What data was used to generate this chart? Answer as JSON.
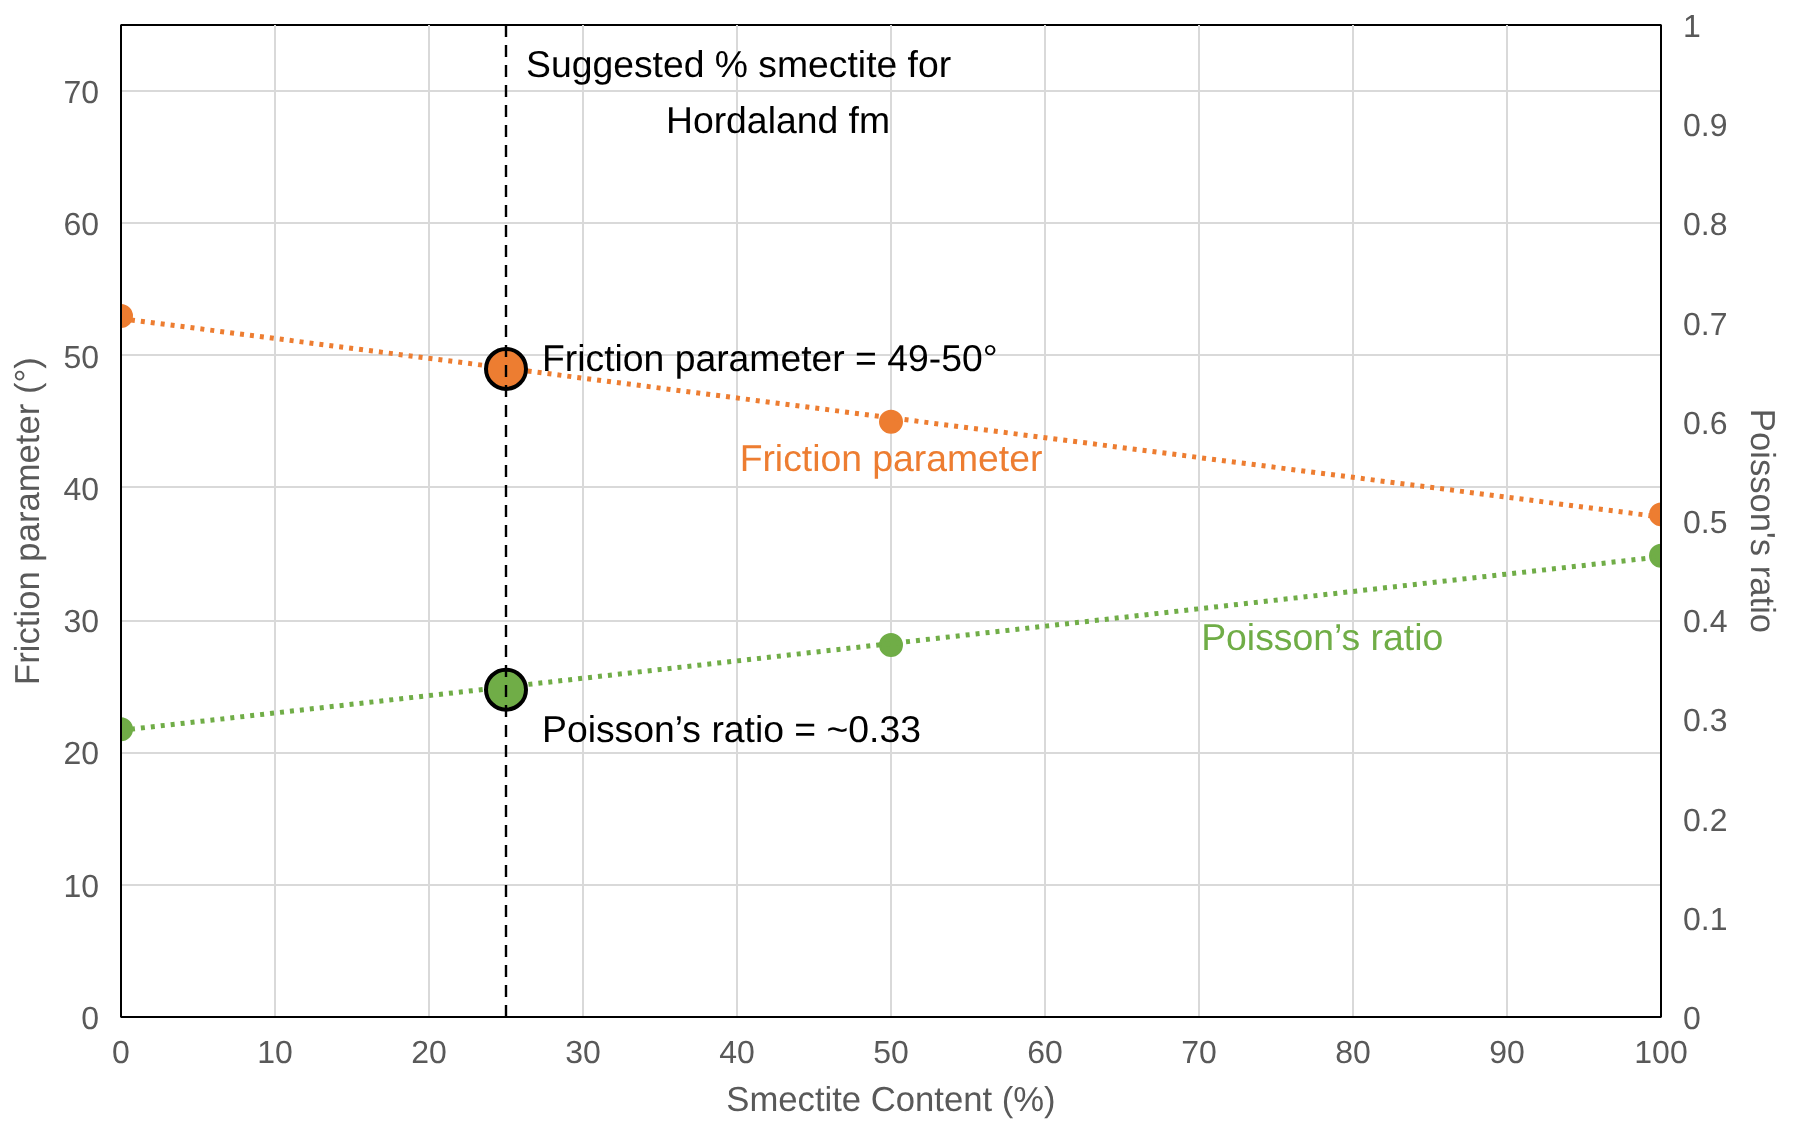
{
  "chart_data": {
    "type": "scatter",
    "xlabel": "Smectite Content (%)",
    "ylabel": "Friction parameter (°)",
    "y2label": "Poisson's ratio",
    "xlim": [
      0,
      100
    ],
    "xticks": [
      0,
      10,
      20,
      30,
      40,
      50,
      60,
      70,
      80,
      90,
      100
    ],
    "ylim": [
      0,
      75
    ],
    "yticks": [
      0,
      10,
      20,
      30,
      40,
      50,
      60,
      70
    ],
    "y2lim": [
      0,
      1
    ],
    "y2ticks": [
      0,
      0.1,
      0.2,
      0.3,
      0.4,
      0.5,
      0.6,
      0.7,
      0.8,
      0.9,
      1
    ],
    "grid": true,
    "marker": "circle",
    "series": [
      {
        "name": "Friction parameter",
        "color": "#ed7d31",
        "x": [
          0,
          50,
          100
        ],
        "values": [
          53,
          45,
          38
        ]
      },
      {
        "type": "line",
        "marker": "none",
        "line_style": "dotted",
        "color": "#ed7d31",
        "x": [
          0,
          100
        ],
        "values": [
          52.8,
          37.8
        ]
      },
      {
        "name": "Poisson’s ratio",
        "axis": "y2",
        "color": "#70ad47",
        "x": [
          0,
          50,
          100
        ],
        "values": [
          0.29,
          0.375,
          0.465
        ]
      },
      {
        "type": "line",
        "marker": "none",
        "line_style": "dotted",
        "axis": "y2",
        "color": "#70ad47",
        "x": [
          0,
          100
        ],
        "values": [
          0.289,
          0.464
        ]
      },
      {
        "color": "#ed7d31",
        "x": [
          25
        ],
        "values": [
          49
        ]
      },
      {
        "axis": "y2",
        "color": "#70ad47",
        "x": [
          25
        ],
        "values": [
          0.33
        ]
      }
    ],
    "ref_lines": [
      {
        "axis": "x",
        "value": 25,
        "label": "Suggested % smectite for\nHordaland fm",
        "color": "#000000",
        "line_style": "dashed"
      }
    ],
    "annotations": [
      {
        "text": "Friction parameter = 49-50°",
        "x": 25,
        "y": 49
      },
      {
        "text": "Poisson’s ratio = ~0.33",
        "x": 25,
        "y": 24.75
      }
    ]
  }
}
